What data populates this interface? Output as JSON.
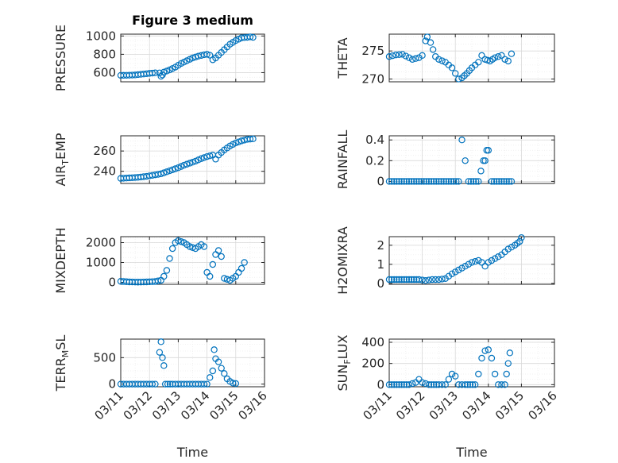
{
  "figure": {
    "background": "#ffffff",
    "marker_color": "#0072BD",
    "x_axis": {
      "label": "Time",
      "ticks": [
        "03/11",
        "03/12",
        "03/13",
        "03/14",
        "03/15",
        "03/16"
      ]
    }
  },
  "chart_data": [
    {
      "type": "scatter",
      "title": "Figure 3 medium",
      "ylabel": "PRESSURE",
      "ylabel_main": "PRESSURE",
      "ylabel_sub": "",
      "ylabel_rest": "",
      "xlabel": "",
      "ylim": [
        500,
        1020
      ],
      "yticks": [
        600,
        800,
        1000
      ],
      "grid": true,
      "panel": 0,
      "points": [
        [
          0.0,
          570
        ],
        [
          0.3,
          572
        ],
        [
          0.5,
          575
        ],
        [
          0.8,
          585
        ],
        [
          1.0,
          592
        ],
        [
          1.2,
          598
        ],
        [
          1.35,
          597
        ],
        [
          1.4,
          560
        ],
        [
          1.45,
          575
        ],
        [
          1.5,
          605
        ],
        [
          1.7,
          630
        ],
        [
          1.9,
          660
        ],
        [
          2.1,
          700
        ],
        [
          2.3,
          730
        ],
        [
          2.5,
          760
        ],
        [
          2.7,
          780
        ],
        [
          2.9,
          795
        ],
        [
          3.0,
          800
        ],
        [
          3.1,
          790
        ],
        [
          3.2,
          740
        ],
        [
          3.3,
          760
        ],
        [
          3.4,
          790
        ],
        [
          3.6,
          850
        ],
        [
          3.8,
          910
        ],
        [
          4.0,
          950
        ],
        [
          4.2,
          980
        ],
        [
          4.4,
          985
        ],
        [
          4.5,
          990
        ],
        [
          4.6,
          985
        ]
      ]
    },
    {
      "type": "scatter",
      "title": "",
      "ylabel": "THETA",
      "ylabel_main": "THETA",
      "ylabel_sub": "",
      "ylabel_rest": "",
      "xlabel": "",
      "ylim": [
        269.5,
        278
      ],
      "yticks": [
        270,
        275
      ],
      "grid": true,
      "panel": 1,
      "points": [
        [
          0.0,
          274.0
        ],
        [
          0.2,
          274.3
        ],
        [
          0.4,
          274.4
        ],
        [
          0.5,
          274.1
        ],
        [
          0.7,
          273.5
        ],
        [
          0.9,
          273.8
        ],
        [
          1.0,
          274.2
        ],
        [
          1.1,
          276.8
        ],
        [
          1.15,
          277.5
        ],
        [
          1.25,
          276.5
        ],
        [
          1.4,
          274.0
        ],
        [
          1.5,
          273.5
        ],
        [
          1.7,
          273.0
        ],
        [
          1.9,
          272.0
        ],
        [
          2.0,
          271.0
        ],
        [
          2.1,
          270.0
        ],
        [
          2.2,
          270.2
        ],
        [
          2.35,
          271.0
        ],
        [
          2.5,
          272.0
        ],
        [
          2.7,
          273.0
        ],
        [
          2.8,
          274.2
        ],
        [
          2.9,
          273.5
        ],
        [
          3.05,
          273.2
        ],
        [
          3.2,
          273.8
        ],
        [
          3.4,
          274.2
        ],
        [
          3.5,
          273.5
        ],
        [
          3.6,
          273.2
        ],
        [
          3.7,
          274.5
        ]
      ]
    },
    {
      "type": "scatter",
      "title": "",
      "ylabel": "AIR_TEMP",
      "ylabel_main": "AIR",
      "ylabel_sub": "T",
      "ylabel_rest": "EMP",
      "xlabel": "",
      "ylim": [
        228,
        275
      ],
      "yticks": [
        240,
        260
      ],
      "grid": true,
      "panel": 2,
      "points": [
        [
          0.0,
          233
        ],
        [
          0.3,
          233.5
        ],
        [
          0.6,
          234
        ],
        [
          0.9,
          235
        ],
        [
          1.2,
          236.5
        ],
        [
          1.4,
          237.5
        ],
        [
          1.6,
          239.5
        ],
        [
          1.8,
          241.5
        ],
        [
          2.0,
          243.5
        ],
        [
          2.2,
          246
        ],
        [
          2.4,
          248
        ],
        [
          2.6,
          250
        ],
        [
          2.8,
          252.5
        ],
        [
          3.0,
          254.5
        ],
        [
          3.2,
          256
        ],
        [
          3.3,
          252
        ],
        [
          3.4,
          256
        ],
        [
          3.6,
          261
        ],
        [
          3.8,
          265
        ],
        [
          4.0,
          268
        ],
        [
          4.2,
          270
        ],
        [
          4.4,
          271.5
        ],
        [
          4.6,
          272
        ]
      ]
    },
    {
      "type": "scatter",
      "title": "",
      "ylabel": "RAINFALL",
      "ylabel_main": "RAINFALL",
      "ylabel_sub": "",
      "ylabel_rest": "",
      "xlabel": "",
      "ylim": [
        -0.02,
        0.44
      ],
      "yticks": [
        0,
        0.2,
        0.4
      ],
      "grid": true,
      "panel": 3,
      "points": [
        [
          0.0,
          0
        ],
        [
          0.3,
          0
        ],
        [
          0.6,
          0
        ],
        [
          0.9,
          0
        ],
        [
          1.2,
          0
        ],
        [
          1.5,
          0
        ],
        [
          1.8,
          0
        ],
        [
          2.1,
          0
        ],
        [
          2.2,
          0.4
        ],
        [
          2.4,
          0
        ],
        [
          2.7,
          0
        ],
        [
          2.85,
          0.2
        ],
        [
          2.9,
          0.2
        ],
        [
          2.95,
          0.3
        ],
        [
          3.0,
          0.3
        ],
        [
          3.1,
          0
        ],
        [
          3.4,
          0
        ],
        [
          3.7,
          0
        ]
      ]
    },
    {
      "type": "scatter",
      "title": "",
      "ylabel": "MIXDEPTH",
      "ylabel_main": "MIXDEPTH",
      "ylabel_sub": "",
      "ylabel_rest": "",
      "xlabel": "",
      "ylim": [
        -100,
        2300
      ],
      "yticks": [
        0,
        1000,
        2000
      ],
      "grid": true,
      "panel": 4,
      "points": [
        [
          0.0,
          50
        ],
        [
          0.3,
          20
        ],
        [
          0.6,
          10
        ],
        [
          0.9,
          20
        ],
        [
          1.2,
          40
        ],
        [
          1.4,
          100
        ],
        [
          1.5,
          300
        ],
        [
          1.6,
          600
        ],
        [
          1.7,
          1200
        ],
        [
          1.8,
          1700
        ],
        [
          1.9,
          2000
        ],
        [
          2.0,
          2100
        ],
        [
          2.2,
          2000
        ],
        [
          2.4,
          1800
        ],
        [
          2.6,
          1700
        ],
        [
          2.8,
          1900
        ],
        [
          2.9,
          1800
        ],
        [
          3.0,
          500
        ],
        [
          3.1,
          300
        ],
        [
          3.2,
          900
        ],
        [
          3.3,
          1400
        ],
        [
          3.4,
          1600
        ],
        [
          3.5,
          1300
        ],
        [
          3.6,
          200
        ],
        [
          3.8,
          100
        ],
        [
          3.9,
          200
        ],
        [
          4.0,
          300
        ],
        [
          4.1,
          500
        ],
        [
          4.2,
          700
        ],
        [
          4.3,
          1000
        ]
      ]
    },
    {
      "type": "scatter",
      "title": "",
      "ylabel": "H2OMIXRA",
      "ylabel_main": "H2OMIXRA",
      "ylabel_sub": "",
      "ylabel_rest": "",
      "xlabel": "",
      "ylim": [
        -0.05,
        2.45
      ],
      "yticks": [
        0,
        1,
        2
      ],
      "grid": true,
      "panel": 5,
      "points": [
        [
          0.0,
          0.2
        ],
        [
          0.3,
          0.2
        ],
        [
          0.6,
          0.2
        ],
        [
          0.9,
          0.2
        ],
        [
          1.1,
          0.15
        ],
        [
          1.3,
          0.2
        ],
        [
          1.5,
          0.2
        ],
        [
          1.7,
          0.25
        ],
        [
          1.9,
          0.5
        ],
        [
          2.1,
          0.7
        ],
        [
          2.3,
          0.9
        ],
        [
          2.5,
          1.1
        ],
        [
          2.7,
          1.2
        ],
        [
          2.8,
          1.1
        ],
        [
          2.9,
          0.9
        ],
        [
          3.0,
          1.1
        ],
        [
          3.2,
          1.3
        ],
        [
          3.4,
          1.5
        ],
        [
          3.6,
          1.8
        ],
        [
          3.8,
          2.0
        ],
        [
          3.95,
          2.2
        ],
        [
          4.0,
          2.4
        ]
      ]
    },
    {
      "type": "scatter",
      "title": "",
      "ylabel": "TERR_MSL",
      "ylabel_main": "TERR",
      "ylabel_sub": "M",
      "ylabel_rest": "SL",
      "xlabel": "",
      "ylim": [
        -50,
        850
      ],
      "yticks": [
        0,
        500
      ],
      "grid": true,
      "panel": 6,
      "points": [
        [
          0.0,
          0
        ],
        [
          0.3,
          0
        ],
        [
          0.6,
          0
        ],
        [
          0.9,
          0
        ],
        [
          1.2,
          0
        ],
        [
          1.35,
          600
        ],
        [
          1.4,
          800
        ],
        [
          1.45,
          500
        ],
        [
          1.5,
          350
        ],
        [
          1.55,
          0
        ],
        [
          1.8,
          0
        ],
        [
          2.1,
          0
        ],
        [
          2.4,
          0
        ],
        [
          2.7,
          0
        ],
        [
          3.0,
          0
        ],
        [
          3.2,
          250
        ],
        [
          3.25,
          650
        ],
        [
          3.3,
          480
        ],
        [
          3.4,
          420
        ],
        [
          3.5,
          300
        ],
        [
          3.6,
          200
        ],
        [
          3.7,
          100
        ],
        [
          3.8,
          50
        ],
        [
          3.9,
          20
        ],
        [
          4.0,
          10
        ]
      ]
    },
    {
      "type": "scatter",
      "title": "",
      "ylabel": "SUN_FLUX",
      "ylabel_main": "SUN",
      "ylabel_sub": "F",
      "ylabel_rest": "LUX",
      "xlabel": "",
      "ylim": [
        -20,
        430
      ],
      "yticks": [
        0,
        200,
        400
      ],
      "grid": true,
      "panel": 7,
      "points": [
        [
          0.0,
          0
        ],
        [
          0.3,
          0
        ],
        [
          0.6,
          0
        ],
        [
          0.8,
          20
        ],
        [
          0.9,
          50
        ],
        [
          1.0,
          20
        ],
        [
          1.2,
          0
        ],
        [
          1.5,
          0
        ],
        [
          1.7,
          0
        ],
        [
          1.8,
          50
        ],
        [
          1.9,
          100
        ],
        [
          2.0,
          80
        ],
        [
          2.1,
          0
        ],
        [
          2.3,
          0
        ],
        [
          2.6,
          0
        ],
        [
          2.7,
          100
        ],
        [
          2.8,
          250
        ],
        [
          2.9,
          320
        ],
        [
          3.0,
          330
        ],
        [
          3.1,
          250
        ],
        [
          3.2,
          100
        ],
        [
          3.3,
          0
        ],
        [
          3.5,
          0
        ],
        [
          3.55,
          100
        ],
        [
          3.6,
          200
        ],
        [
          3.65,
          300
        ]
      ]
    }
  ]
}
